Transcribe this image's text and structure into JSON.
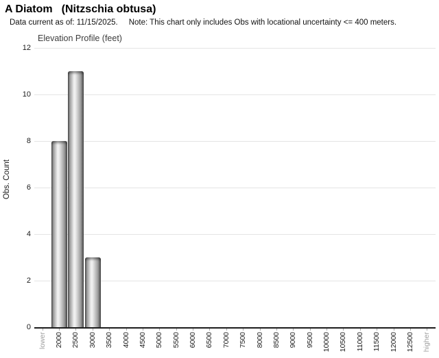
{
  "header": {
    "title_common": "A Diatom",
    "title_scientific": "(Nitzschia obtusa)",
    "subtitle_data_current": "Data current as of: 11/15/2025.",
    "subtitle_note": "Note: This chart only includes Obs with locational uncertainty <= 400 meters."
  },
  "chart_data": {
    "type": "bar",
    "title": "Elevation Profile (feet)",
    "xlabel": "",
    "ylabel": "Obs. Count",
    "categories": [
      "lower",
      "2000",
      "2500",
      "3000",
      "3500",
      "4000",
      "4500",
      "5000",
      "5500",
      "6000",
      "6500",
      "7000",
      "7500",
      "8000",
      "8500",
      "9000",
      "9500",
      "10000",
      "10500",
      "11000",
      "11500",
      "12000",
      "12500",
      "higher"
    ],
    "values": [
      0,
      8,
      11,
      3,
      0,
      0,
      0,
      0,
      0,
      0,
      0,
      0,
      0,
      0,
      0,
      0,
      0,
      0,
      0,
      0,
      0,
      0,
      0,
      0
    ],
    "ylim": [
      0,
      12
    ],
    "ytick_step": 2,
    "grid": "horizontal",
    "legend": "none",
    "muted_categories": [
      "lower",
      "higher"
    ],
    "colors": {
      "bar_edge": "#474747",
      "bar_mid": "#9a9a9a",
      "bar_highlight": "#efefef",
      "gridline": "#e4e4e4",
      "axis": "#1c1c1c",
      "label": "#1a1a1a",
      "muted_label": "#9e9e9e",
      "title": "#3c3c3c"
    }
  }
}
